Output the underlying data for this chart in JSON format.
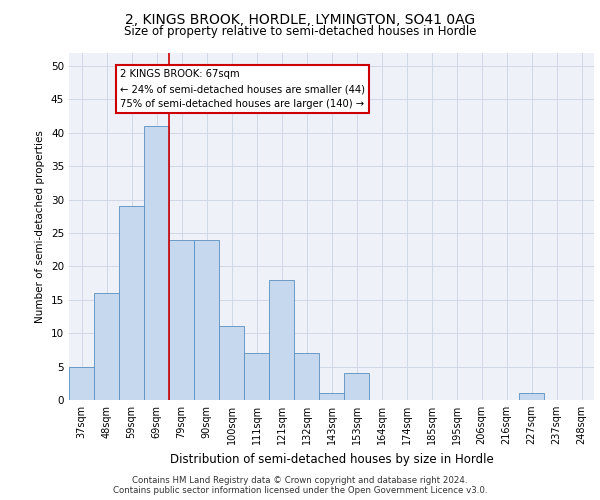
{
  "title": "2, KINGS BROOK, HORDLE, LYMINGTON, SO41 0AG",
  "subtitle": "Size of property relative to semi-detached houses in Hordle",
  "xlabel": "Distribution of semi-detached houses by size in Hordle",
  "ylabel": "Number of semi-detached properties",
  "categories": [
    "37sqm",
    "48sqm",
    "59sqm",
    "69sqm",
    "79sqm",
    "90sqm",
    "100sqm",
    "111sqm",
    "121sqm",
    "132sqm",
    "143sqm",
    "153sqm",
    "164sqm",
    "174sqm",
    "185sqm",
    "195sqm",
    "206sqm",
    "216sqm",
    "227sqm",
    "237sqm",
    "248sqm"
  ],
  "values": [
    5,
    16,
    29,
    41,
    24,
    24,
    11,
    7,
    18,
    7,
    1,
    4,
    0,
    0,
    0,
    0,
    0,
    0,
    1,
    0,
    0
  ],
  "bar_color": "#c5d8ed",
  "bar_edge_color": "#5a8fc2",
  "annotation_text": "2 KINGS BROOK: 67sqm\n← 24% of semi-detached houses are smaller (44)\n75% of semi-detached houses are larger (140) →",
  "annotation_box_color": "#ffffff",
  "annotation_box_edge": "#cc0000",
  "red_line_color": "#cc0000",
  "ylim": [
    0,
    52
  ],
  "yticks": [
    0,
    5,
    10,
    15,
    20,
    25,
    30,
    35,
    40,
    45,
    50
  ],
  "footer_line1": "Contains HM Land Registry data © Crown copyright and database right 2024.",
  "footer_line2": "Contains public sector information licensed under the Open Government Licence v3.0.",
  "grid_color": "#d0d8e8",
  "background_color": "#eef2f8",
  "title_fontsize": 10,
  "subtitle_fontsize": 8.5
}
